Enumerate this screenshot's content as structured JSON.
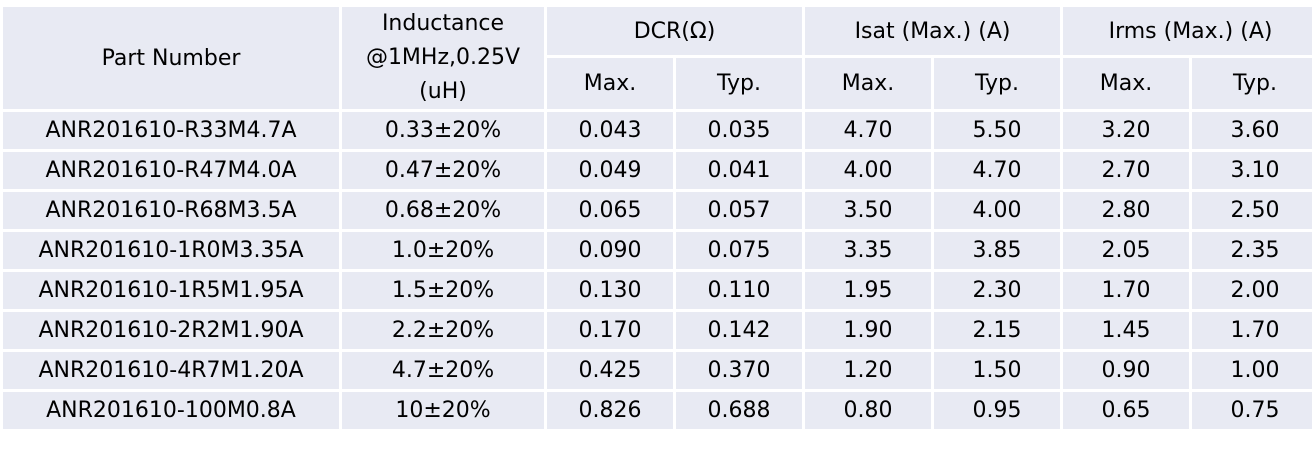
{
  "header": {
    "part_number": "Part Number",
    "inductance_lines": [
      "Inductance",
      "@1MHz,0.25V",
      "(uH)"
    ],
    "dcr": "DCR(Ω)",
    "isat": "Isat (Max.) (A)",
    "irms": "Irms (Max.) (A)",
    "max": "Max.",
    "typ": "Typ."
  },
  "rows": [
    [
      "ANR201610-R33M4.7A",
      "0.33±20%",
      "0.043",
      "0.035",
      "4.70",
      "5.50",
      "3.20",
      "3.60"
    ],
    [
      "ANR201610-R47M4.0A",
      "0.47±20%",
      "0.049",
      "0.041",
      "4.00",
      "4.70",
      "2.70",
      "3.10"
    ],
    [
      "ANR201610-R68M3.5A",
      "0.68±20%",
      "0.065",
      "0.057",
      "3.50",
      "4.00",
      "2.80",
      "2.50"
    ],
    [
      "ANR201610-1R0M3.35A",
      "1.0±20%",
      "0.090",
      "0.075",
      "3.35",
      "3.85",
      "2.05",
      "2.35"
    ],
    [
      "ANR201610-1R5M1.95A",
      "1.5±20%",
      "0.130",
      "0.110",
      "1.95",
      "2.30",
      "1.70",
      "2.00"
    ],
    [
      "ANR201610-2R2M1.90A",
      "2.2±20%",
      "0.170",
      "0.142",
      "1.90",
      "2.15",
      "1.45",
      "1.70"
    ],
    [
      "ANR201610-4R7M1.20A",
      "4.7±20%",
      "0.425",
      "0.370",
      "1.20",
      "1.50",
      "0.90",
      "1.00"
    ],
    [
      "ANR201610-100M0.8A",
      "10±20%",
      "0.826",
      "0.688",
      "0.80",
      "0.95",
      "0.65",
      "0.75"
    ]
  ]
}
